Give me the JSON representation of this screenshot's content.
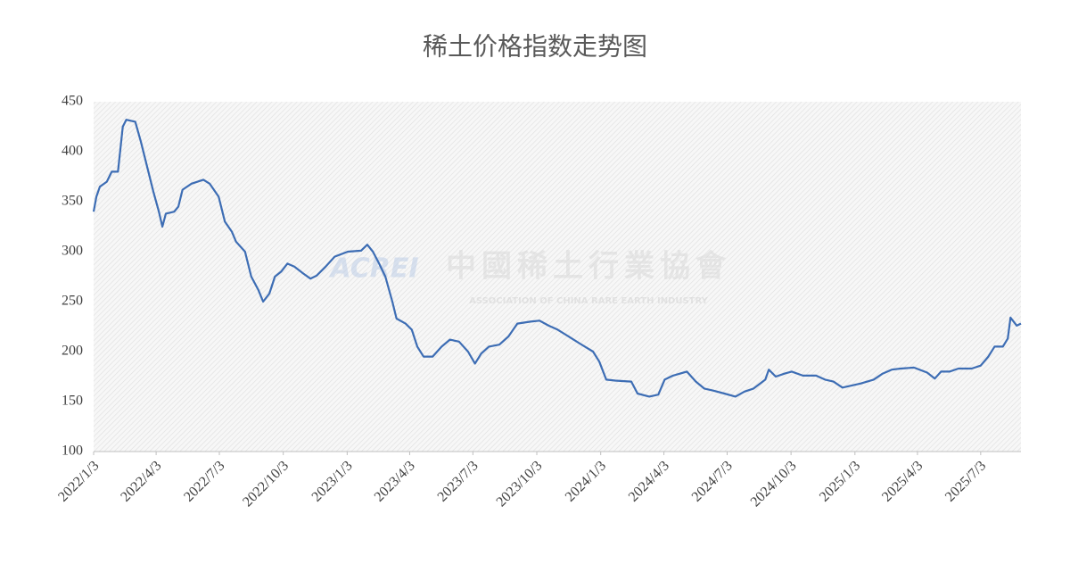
{
  "chart_data": {
    "type": "line",
    "title": "稀土价格指数走势图",
    "watermark": {
      "logo": "ACREI",
      "name": "中國稀土行業協會",
      "english": "ASSOCIATION OF CHINA RARE EARTH INDUSTRY"
    },
    "color": "#3d6db4",
    "x": [
      "2022/1/3",
      "2022/1/7",
      "2022/1/12",
      "2022/1/22",
      "2022/1/29",
      "2022/2/7",
      "2022/2/14",
      "2022/2/19",
      "2022/3/4",
      "2022/3/12",
      "2022/3/21",
      "2022/3/30",
      "2022/4/7",
      "2022/4/12",
      "2022/4/17",
      "2022/4/29",
      "2022/5/5",
      "2022/5/11",
      "2022/5/24",
      "2022/6/10",
      "2022/6/19",
      "2022/7/2",
      "2022/7/11",
      "2022/7/21",
      "2022/7/27",
      "2022/8/9",
      "2022/8/18",
      "2022/8/28",
      "2022/9/4",
      "2022/9/13",
      "2022/9/21",
      "2022/9/30",
      "2022/10/9",
      "2022/10/19",
      "2022/11/1",
      "2022/11/11",
      "2022/11/20",
      "2022/12/3",
      "2022/12/16",
      "2023/1/4",
      "2023/1/23",
      "2023/2/1",
      "2023/2/9",
      "2023/2/18",
      "2023/2/27",
      "2023/3/9",
      "2023/3/15",
      "2023/3/28",
      "2023/4/6",
      "2023/4/14",
      "2023/4/23",
      "2023/5/6",
      "2023/5/19",
      "2023/5/31",
      "2023/6/13",
      "2023/6/26",
      "2023/7/6",
      "2023/7/15",
      "2023/7/26",
      "2023/8/10",
      "2023/8/23",
      "2023/9/5",
      "2023/9/24",
      "2023/10/7",
      "2023/10/20",
      "2023/11/2",
      "2023/11/18",
      "2023/12/4",
      "2023/12/23",
      "2024/1/1",
      "2024/1/11",
      "2024/1/24",
      "2024/2/16",
      "2024/2/25",
      "2024/3/13",
      "2024/3/26",
      "2024/4/4",
      "2024/4/16",
      "2024/5/6",
      "2024/5/19",
      "2024/5/31",
      "2024/6/13",
      "2024/6/29",
      "2024/7/15",
      "2024/7/28",
      "2024/8/10",
      "2024/8/27",
      "2024/9/1",
      "2024/9/11",
      "2024/9/24",
      "2024/10/4",
      "2024/10/20",
      "2024/11/8",
      "2024/11/21",
      "2024/12/3",
      "2024/12/16",
      "2024/12/29",
      "2025/1/11",
      "2025/1/30",
      "2025/2/12",
      "2025/2/25",
      "2025/3/10",
      "2025/3/29",
      "2025/4/17",
      "2025/4/28",
      "2025/5/7",
      "2025/5/19",
      "2025/6/1",
      "2025/6/20",
      "2025/7/3",
      "2025/7/14",
      "2025/7/23",
      "2025/8/4",
      "2025/8/11",
      "2025/8/15",
      "2025/8/24",
      "2025/8/30"
    ],
    "values": [
      340,
      355,
      365,
      370,
      380,
      380,
      425,
      432,
      430,
      410,
      385,
      360,
      340,
      325,
      338,
      340,
      345,
      362,
      368,
      372,
      368,
      355,
      330,
      320,
      310,
      300,
      275,
      262,
      250,
      258,
      275,
      280,
      288,
      285,
      278,
      273,
      276,
      285,
      295,
      300,
      301,
      307,
      300,
      288,
      275,
      250,
      233,
      228,
      222,
      205,
      195,
      195,
      205,
      212,
      210,
      200,
      188,
      198,
      205,
      207,
      215,
      228,
      230,
      231,
      226,
      222,
      215,
      208,
      200,
      190,
      172,
      171,
      170,
      158,
      155,
      157,
      172,
      176,
      180,
      170,
      163,
      161,
      158,
      155,
      160,
      163,
      172,
      182,
      175,
      178,
      180,
      176,
      176,
      172,
      170,
      164,
      166,
      168,
      172,
      178,
      182,
      183,
      184,
      179,
      173,
      180,
      180,
      183,
      183,
      186,
      195,
      205,
      205,
      213,
      234,
      226,
      228
    ],
    "xlim": [
      "2022/1/3",
      "2025/8/30"
    ],
    "xticks": [
      "2022/1/3",
      "2022/4/3",
      "2022/7/3",
      "2022/10/3",
      "2023/1/3",
      "2023/4/3",
      "2023/7/3",
      "2023/10/3",
      "2024/1/3",
      "2024/4/3",
      "2024/7/3",
      "2024/10/3",
      "2025/1/3",
      "2025/4/3",
      "2025/7/3"
    ],
    "ylim": [
      100,
      450
    ],
    "yticks": [
      100,
      150,
      200,
      250,
      300,
      350,
      400,
      450
    ],
    "grid": false
  }
}
